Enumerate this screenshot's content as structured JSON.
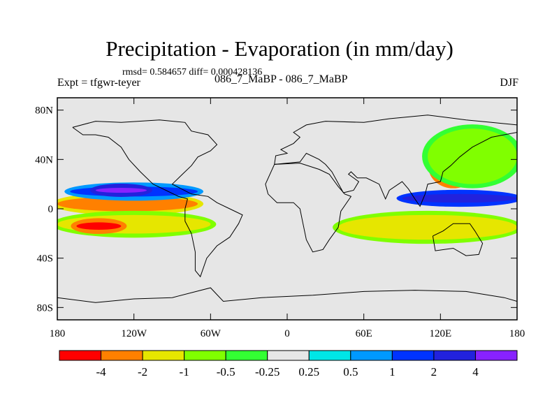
{
  "chart_data": {
    "type": "heatmap",
    "title": "Precipitation - Evaporation (in mm/day)",
    "subtitle": "rmsd= 0.584657  diff= 0.000428136",
    "left_label": "Expt = tfgwr-teyer",
    "center_label": "086_7_MaBP - 086_7_MaBP",
    "right_label": "DJF",
    "x_axis": {
      "range": [
        -180,
        180
      ],
      "ticks": [
        {
          "value": -180,
          "label": "180"
        },
        {
          "value": -120,
          "label": "120W"
        },
        {
          "value": -60,
          "label": "60W"
        },
        {
          "value": 0,
          "label": "0"
        },
        {
          "value": 60,
          "label": "60E"
        },
        {
          "value": 120,
          "label": "120E"
        },
        {
          "value": 180,
          "label": "180"
        }
      ]
    },
    "y_axis": {
      "range": [
        -90,
        90
      ],
      "ticks": [
        {
          "value": 80,
          "label": "80N"
        },
        {
          "value": 40,
          "label": "40N"
        },
        {
          "value": 0,
          "label": "0"
        },
        {
          "value": -40,
          "label": "40S"
        },
        {
          "value": -80,
          "label": "80S"
        }
      ]
    },
    "colorbar": {
      "colors": [
        "#ff0000",
        "#ff8000",
        "#e6e600",
        "#80ff00",
        "#33ff33",
        "#e6e6e6",
        "#00e6e6",
        "#0099ff",
        "#0033ff",
        "#2222dd",
        "#8822ff"
      ],
      "labels": [
        "-4",
        "-2",
        "-1",
        "-0.5",
        "-0.25",
        "0.25",
        "0.5",
        "1",
        "2",
        "4"
      ]
    },
    "features": [
      {
        "name": "equatorial band east pacific",
        "lon": [
          -180,
          -70
        ],
        "lat": [
          -2,
          10
        ],
        "level": "-2"
      },
      {
        "name": "itcz west",
        "lon": [
          -170,
          -70
        ],
        "lat": [
          10,
          18
        ],
        "level": "1"
      },
      {
        "name": "itcz core",
        "lon": [
          -150,
          -110
        ],
        "lat": [
          13,
          17
        ],
        "level": "4"
      },
      {
        "name": "south pacific band",
        "lon": [
          -180,
          -60
        ],
        "lat": [
          -20,
          -5
        ],
        "level": "-1"
      },
      {
        "name": "south pacific core",
        "lon": [
          -165,
          -130
        ],
        "lat": [
          -17,
          -11
        ],
        "level": "-4"
      },
      {
        "name": "west pacific band",
        "lon": [
          40,
          180
        ],
        "lat": [
          -25,
          -5
        ],
        "level": "-1"
      },
      {
        "name": "maritime continent",
        "lon": [
          90,
          180
        ],
        "lat": [
          5,
          12
        ],
        "level": "2"
      },
      {
        "name": "japan high",
        "lon": [
          115,
          145
        ],
        "lat": [
          20,
          48
        ],
        "level": "-4"
      },
      {
        "name": "north pacific",
        "lon": [
          110,
          180
        ],
        "lat": [
          20,
          65
        ],
        "level": "-0.5"
      }
    ]
  }
}
